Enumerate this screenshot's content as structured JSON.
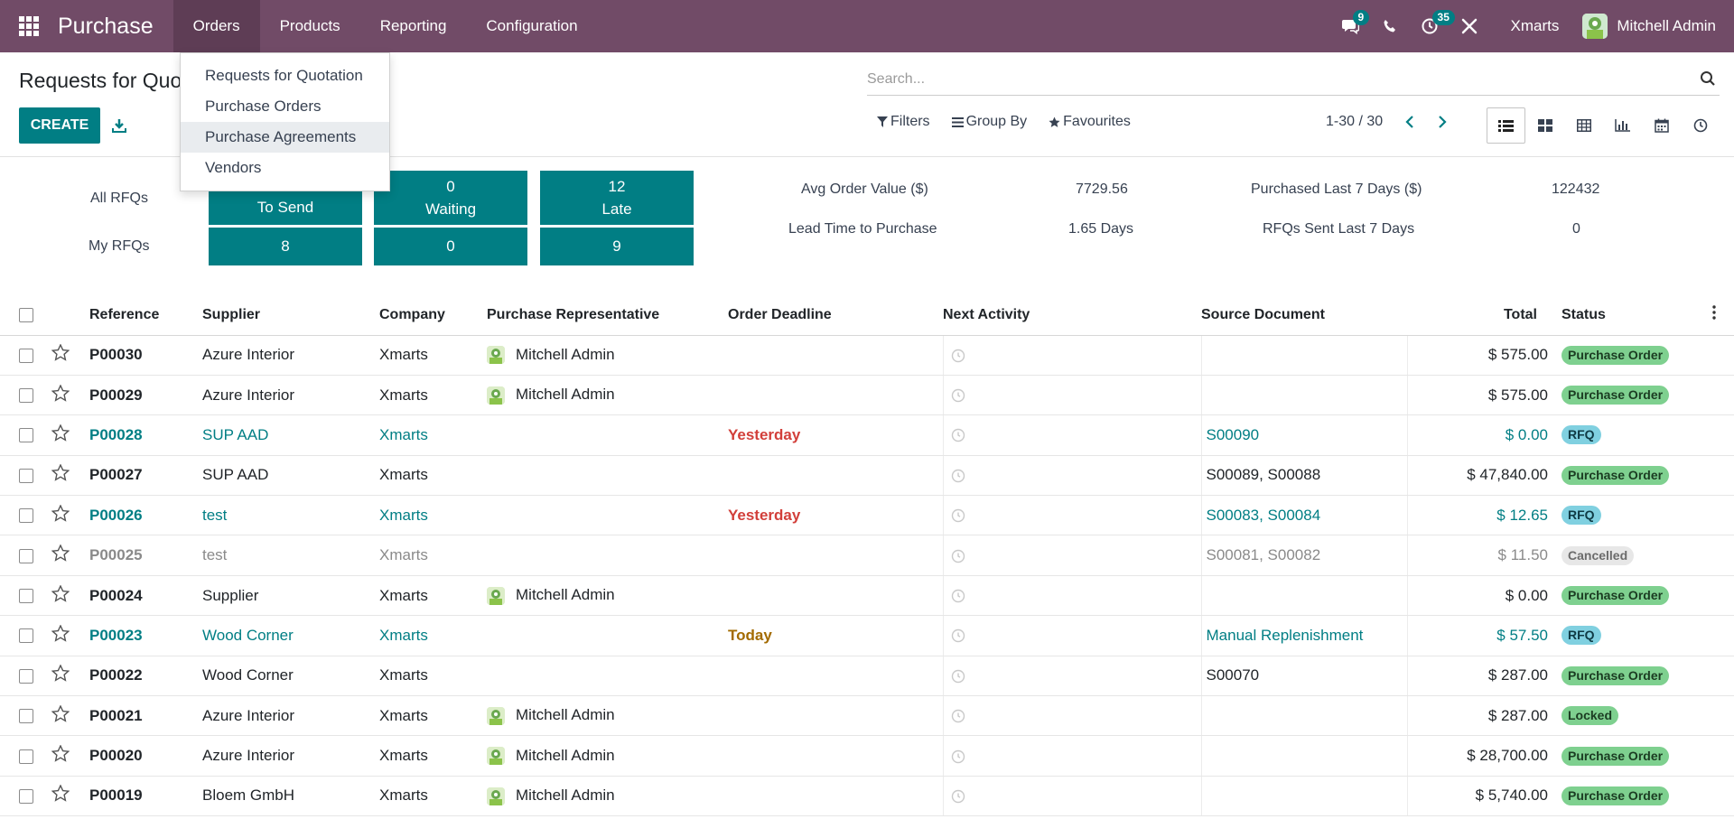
{
  "nav": {
    "brand": "Purchase",
    "menu": [
      "Orders",
      "Products",
      "Reporting",
      "Configuration"
    ],
    "active_menu": "Orders",
    "messages_count": "9",
    "activities_count": "35",
    "company": "Xmarts",
    "user": "Mitchell Admin"
  },
  "dropdown": {
    "items": [
      "Requests for Quotation",
      "Purchase Orders",
      "Purchase Agreements",
      "Vendors"
    ],
    "highlighted": "Purchase Agreements"
  },
  "control": {
    "title": "Requests for Quotation",
    "create_label": "CREATE",
    "search_placeholder": "Search...",
    "filters_label": "Filters",
    "groupby_label": "Group By",
    "favourites_label": "Favourites",
    "pager": "1-30 / 30"
  },
  "dashboard": {
    "all_rfqs_label": "All RFQs",
    "my_rfqs_label": "My RFQs",
    "to_send_label": "To Send",
    "waiting_label": "Waiting",
    "late_label": "Late",
    "all_waiting": "0",
    "all_late": "12",
    "my_to_send": "8",
    "my_waiting": "0",
    "my_late": "9",
    "avg_order_label": "Avg Order Value ($)",
    "avg_order_value": "7729.56",
    "lead_time_label": "Lead Time to Purchase",
    "lead_time_value": "1.65  Days",
    "purchased_label": "Purchased Last 7 Days ($)",
    "purchased_value": "122432",
    "rfqs_sent_label": "RFQs Sent Last 7 Days",
    "rfqs_sent_value": "0"
  },
  "table": {
    "headers": {
      "reference": "Reference",
      "supplier": "Supplier",
      "company": "Company",
      "representative": "Purchase Representative",
      "deadline": "Order Deadline",
      "activity": "Next Activity",
      "source": "Source Document",
      "total": "Total",
      "status": "Status"
    },
    "rows": [
      {
        "ref": "P00030",
        "supplier": "Azure Interior",
        "company": "Xmarts",
        "rep": "Mitchell Admin",
        "deadline": "",
        "source": "",
        "total": "$ 575.00",
        "status": "Purchase Order",
        "kind": "normal",
        "status_kind": "po"
      },
      {
        "ref": "P00029",
        "supplier": "Azure Interior",
        "company": "Xmarts",
        "rep": "Mitchell Admin",
        "deadline": "",
        "source": "",
        "total": "$ 575.00",
        "status": "Purchase Order",
        "kind": "normal",
        "status_kind": "po"
      },
      {
        "ref": "P00028",
        "supplier": "SUP AAD",
        "company": "Xmarts",
        "rep": "",
        "deadline": "Yesterday",
        "source": "S00090",
        "total": "$ 0.00",
        "status": "RFQ",
        "kind": "rfq",
        "status_kind": "rfq",
        "deadline_kind": "red"
      },
      {
        "ref": "P00027",
        "supplier": "SUP AAD",
        "company": "Xmarts",
        "rep": "",
        "deadline": "",
        "source": "S00089, S00088",
        "total": "$ 47,840.00",
        "status": "Purchase Order",
        "kind": "normal",
        "status_kind": "po"
      },
      {
        "ref": "P00026",
        "supplier": "test",
        "company": "Xmarts",
        "rep": "",
        "deadline": "Yesterday",
        "source": "S00083, S00084",
        "total": "$ 12.65",
        "status": "RFQ",
        "kind": "rfq",
        "status_kind": "rfq",
        "deadline_kind": "red"
      },
      {
        "ref": "P00025",
        "supplier": "test",
        "company": "Xmarts",
        "rep": "",
        "deadline": "",
        "source": "S00081, S00082",
        "total": "$ 11.50",
        "status": "Cancelled",
        "kind": "cancel",
        "status_kind": "cancel"
      },
      {
        "ref": "P00024",
        "supplier": "Supplier",
        "company": "Xmarts",
        "rep": "Mitchell Admin",
        "deadline": "",
        "source": "",
        "total": "$ 0.00",
        "status": "Purchase Order",
        "kind": "normal",
        "status_kind": "po"
      },
      {
        "ref": "P00023",
        "supplier": "Wood Corner",
        "company": "Xmarts",
        "rep": "",
        "deadline": "Today",
        "source": "Manual Replenishment",
        "total": "$ 57.50",
        "status": "RFQ",
        "kind": "rfq",
        "status_kind": "rfq",
        "deadline_kind": "orange"
      },
      {
        "ref": "P00022",
        "supplier": "Wood Corner",
        "company": "Xmarts",
        "rep": "",
        "deadline": "",
        "source": "S00070",
        "total": "$ 287.00",
        "status": "Purchase Order",
        "kind": "normal",
        "status_kind": "po"
      },
      {
        "ref": "P00021",
        "supplier": "Azure Interior",
        "company": "Xmarts",
        "rep": "Mitchell Admin",
        "deadline": "",
        "source": "",
        "total": "$ 287.00",
        "status": "Locked",
        "kind": "normal",
        "status_kind": "locked"
      },
      {
        "ref": "P00020",
        "supplier": "Azure Interior",
        "company": "Xmarts",
        "rep": "Mitchell Admin",
        "deadline": "",
        "source": "",
        "total": "$ 28,700.00",
        "status": "Purchase Order",
        "kind": "normal",
        "status_kind": "po"
      },
      {
        "ref": "P00019",
        "supplier": "Bloem GmbH",
        "company": "Xmarts",
        "rep": "Mitchell Admin",
        "deadline": "",
        "source": "",
        "total": "$ 5,740.00",
        "status": "Purchase Order",
        "kind": "normal",
        "status_kind": "po"
      }
    ]
  },
  "colors": {
    "brand": "#714B67",
    "accent": "#017e84",
    "danger": "#d23f3a",
    "warning": "#a36b00"
  }
}
